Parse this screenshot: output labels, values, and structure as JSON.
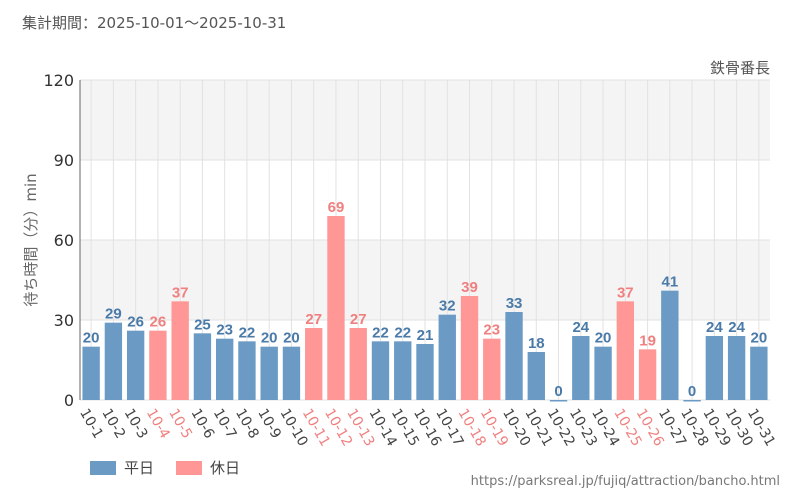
{
  "header": {
    "period_label": "集計期間：2025-10-01～2025-10-31"
  },
  "colors": {
    "weekday": "#6b9ac4",
    "holiday": "#ff9796",
    "weekday_text": "#4a7aa8",
    "holiday_text": "#f08080",
    "band": "#f4f4f4",
    "grid": "#e2e2e2"
  },
  "legend": {
    "weekday": "平日",
    "holiday": "休日"
  },
  "source": {
    "url": "https://parksreal.jp/fujiq/attraction/bancho.html"
  },
  "chart_data": {
    "type": "bar",
    "title": "鉄骨番長",
    "xlabel": "",
    "ylabel": "待ち時間（分）min",
    "ylim": [
      0,
      120
    ],
    "yticks": [
      0,
      30,
      60,
      90,
      120
    ],
    "categories": [
      "10-1",
      "10-2",
      "10-3",
      "10-4",
      "10-5",
      "10-6",
      "10-7",
      "10-8",
      "10-9",
      "10-10",
      "10-11",
      "10-12",
      "10-13",
      "10-14",
      "10-15",
      "10-16",
      "10-17",
      "10-18",
      "10-19",
      "10-20",
      "10-21",
      "10-22",
      "10-23",
      "10-24",
      "10-25",
      "10-26",
      "10-27",
      "10-28",
      "10-29",
      "10-30",
      "10-31"
    ],
    "values": [
      20,
      29,
      26,
      26,
      37,
      25,
      23,
      22,
      20,
      20,
      27,
      69,
      27,
      22,
      22,
      21,
      32,
      39,
      23,
      33,
      18,
      0,
      24,
      20,
      37,
      19,
      41,
      0,
      24,
      24,
      20
    ],
    "day_type": [
      "平日",
      "平日",
      "平日",
      "休日",
      "休日",
      "平日",
      "平日",
      "平日",
      "平日",
      "平日",
      "休日",
      "休日",
      "休日",
      "平日",
      "平日",
      "平日",
      "平日",
      "休日",
      "休日",
      "平日",
      "平日",
      "平日",
      "平日",
      "平日",
      "休日",
      "休日",
      "平日",
      "平日",
      "平日",
      "平日",
      "平日"
    ]
  }
}
